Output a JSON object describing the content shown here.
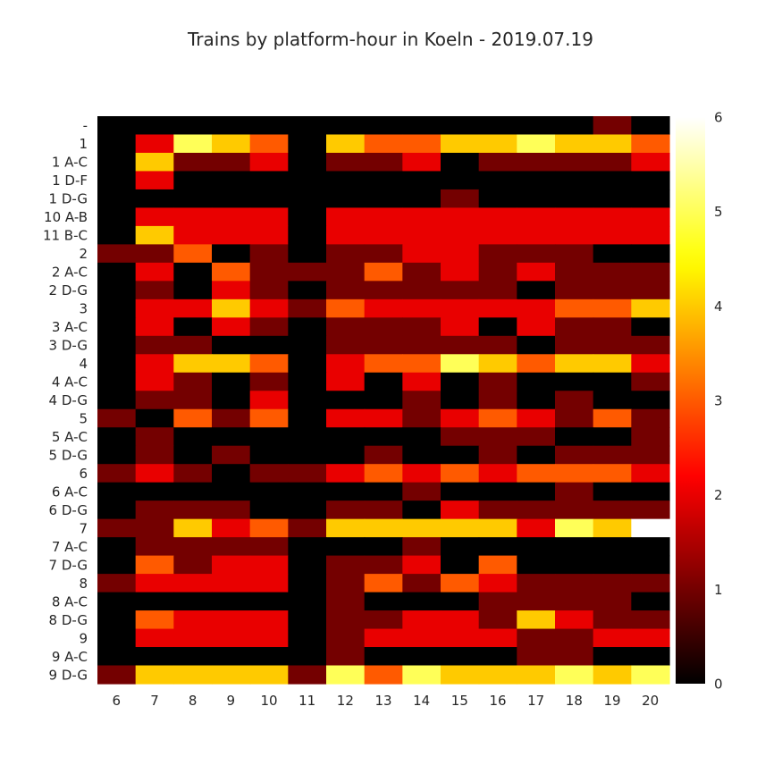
{
  "chart_data": {
    "type": "heatmap",
    "title": "Trains by platform-hour in Koeln - 2019.07.19",
    "xlabel": "",
    "ylabel": "",
    "x_categories": [
      "6",
      "7",
      "8",
      "9",
      "10",
      "11",
      "12",
      "13",
      "14",
      "15",
      "16",
      "17",
      "18",
      "19",
      "20"
    ],
    "y_categories": [
      "-",
      "1",
      "1 A-C",
      "1 D-F",
      "1 D-G",
      "10 A-B",
      "11 B-C",
      "2",
      "2 A-C",
      "2 D-G",
      "3",
      "3 A-C",
      "3 D-G",
      "4",
      "4 A-C",
      "4 D-G",
      "5",
      "5 A-C",
      "5 D-G",
      "6",
      "6 A-C",
      "6 D-G",
      "7",
      "7 A-C",
      "7 D-G",
      "8",
      "8 A-C",
      "8 D-G",
      "9",
      "9 A-C",
      "9 D-G"
    ],
    "values": [
      [
        0,
        0,
        0,
        0,
        0,
        0,
        0,
        0,
        0,
        0,
        0,
        0,
        0,
        1,
        0
      ],
      [
        0,
        2,
        5,
        4,
        3,
        0,
        4,
        3,
        3,
        4,
        4,
        5,
        4,
        4,
        3
      ],
      [
        0,
        4,
        1,
        1,
        2,
        0,
        1,
        1,
        2,
        0,
        1,
        1,
        1,
        1,
        2
      ],
      [
        0,
        2,
        0,
        0,
        0,
        0,
        0,
        0,
        0,
        0,
        0,
        0,
        0,
        0,
        0
      ],
      [
        0,
        0,
        0,
        0,
        0,
        0,
        0,
        0,
        0,
        1,
        0,
        0,
        0,
        0,
        0
      ],
      [
        0,
        2,
        2,
        2,
        2,
        0,
        2,
        2,
        2,
        2,
        2,
        2,
        2,
        2,
        2
      ],
      [
        0,
        4,
        2,
        2,
        2,
        0,
        2,
        2,
        2,
        2,
        2,
        2,
        2,
        2,
        2
      ],
      [
        1,
        1,
        3,
        0,
        1,
        0,
        1,
        1,
        2,
        2,
        1,
        1,
        1,
        0,
        0
      ],
      [
        0,
        2,
        0,
        3,
        1,
        1,
        1,
        3,
        1,
        2,
        1,
        2,
        1,
        1,
        1
      ],
      [
        0,
        1,
        0,
        2,
        1,
        0,
        1,
        1,
        1,
        1,
        1,
        0,
        1,
        1,
        1
      ],
      [
        0,
        2,
        2,
        4,
        2,
        1,
        3,
        2,
        2,
        2,
        2,
        2,
        3,
        3,
        4
      ],
      [
        0,
        2,
        0,
        2,
        1,
        0,
        1,
        1,
        1,
        2,
        0,
        2,
        1,
        1,
        0
      ],
      [
        0,
        1,
        1,
        0,
        0,
        0,
        1,
        1,
        1,
        1,
        1,
        0,
        1,
        1,
        1
      ],
      [
        0,
        2,
        4,
        4,
        3,
        0,
        2,
        3,
        3,
        5,
        4,
        3,
        4,
        4,
        2
      ],
      [
        0,
        2,
        1,
        0,
        1,
        0,
        2,
        0,
        2,
        0,
        1,
        0,
        0,
        0,
        1
      ],
      [
        0,
        1,
        1,
        0,
        2,
        0,
        0,
        0,
        1,
        0,
        1,
        0,
        1,
        0,
        0
      ],
      [
        1,
        0,
        3,
        1,
        3,
        0,
        2,
        2,
        1,
        2,
        3,
        2,
        1,
        3,
        1
      ],
      [
        0,
        1,
        0,
        0,
        0,
        0,
        0,
        0,
        0,
        1,
        1,
        1,
        0,
        0,
        1
      ],
      [
        0,
        1,
        0,
        1,
        0,
        0,
        0,
        1,
        0,
        0,
        1,
        0,
        1,
        1,
        1
      ],
      [
        1,
        2,
        1,
        0,
        1,
        1,
        2,
        3,
        2,
        3,
        2,
        3,
        3,
        3,
        2
      ],
      [
        0,
        0,
        0,
        0,
        0,
        0,
        0,
        0,
        1,
        0,
        0,
        0,
        1,
        0,
        0
      ],
      [
        0,
        1,
        1,
        1,
        0,
        0,
        1,
        1,
        0,
        2,
        1,
        1,
        1,
        1,
        1
      ],
      [
        1,
        1,
        4,
        2,
        3,
        1,
        4,
        4,
        4,
        4,
        4,
        2,
        5,
        4,
        6
      ],
      [
        0,
        1,
        1,
        1,
        1,
        0,
        0,
        0,
        1,
        0,
        0,
        0,
        0,
        0,
        0
      ],
      [
        0,
        3,
        1,
        2,
        2,
        0,
        1,
        1,
        2,
        0,
        3,
        0,
        0,
        0,
        0
      ],
      [
        1,
        2,
        2,
        2,
        2,
        0,
        1,
        3,
        1,
        3,
        2,
        1,
        1,
        1,
        1
      ],
      [
        0,
        0,
        0,
        0,
        0,
        0,
        1,
        0,
        0,
        0,
        1,
        1,
        1,
        1,
        0
      ],
      [
        0,
        3,
        2,
        2,
        2,
        0,
        1,
        1,
        2,
        2,
        1,
        4,
        2,
        1,
        1
      ],
      [
        0,
        2,
        2,
        2,
        2,
        0,
        1,
        2,
        2,
        2,
        2,
        1,
        1,
        2,
        2
      ],
      [
        0,
        0,
        0,
        0,
        0,
        0,
        1,
        0,
        0,
        0,
        0,
        1,
        1,
        0,
        0
      ],
      [
        1,
        4,
        4,
        4,
        4,
        1,
        5,
        3,
        5,
        4,
        4,
        4,
        5,
        4,
        5
      ]
    ],
    "colorbar": {
      "min": 0,
      "max": 6,
      "ticks": [
        "0",
        "1",
        "2",
        "3",
        "4",
        "5",
        "6"
      ]
    },
    "colormap": "hot",
    "colors": [
      "#000000",
      "#7f0000",
      "#ff1a1a",
      "#ff6600",
      "#ffc000",
      "#ffff66",
      "#ffffff"
    ],
    "grid": false
  }
}
